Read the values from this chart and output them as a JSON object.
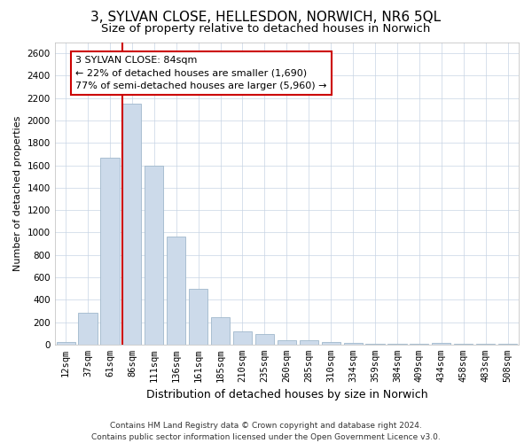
{
  "title": "3, SYLVAN CLOSE, HELLESDON, NORWICH, NR6 5QL",
  "subtitle": "Size of property relative to detached houses in Norwich",
  "xlabel": "Distribution of detached houses by size in Norwich",
  "ylabel": "Number of detached properties",
  "categories": [
    "12sqm",
    "37sqm",
    "61sqm",
    "86sqm",
    "111sqm",
    "136sqm",
    "161sqm",
    "185sqm",
    "210sqm",
    "235sqm",
    "260sqm",
    "285sqm",
    "310sqm",
    "334sqm",
    "359sqm",
    "384sqm",
    "409sqm",
    "434sqm",
    "458sqm",
    "483sqm",
    "508sqm"
  ],
  "values": [
    20,
    280,
    1670,
    2150,
    1600,
    960,
    500,
    245,
    115,
    90,
    40,
    35,
    22,
    15,
    10,
    8,
    5,
    18,
    5,
    5,
    5
  ],
  "bar_color": "#ccdaea",
  "bar_edge_color": "#a0b8cc",
  "vline_color": "#cc0000",
  "vline_x_index": 3,
  "ylim": [
    0,
    2700
  ],
  "yticks": [
    0,
    200,
    400,
    600,
    800,
    1000,
    1200,
    1400,
    1600,
    1800,
    2000,
    2200,
    2400,
    2600
  ],
  "annotation_text": "3 SYLVAN CLOSE: 84sqm\n← 22% of detached houses are smaller (1,690)\n77% of semi-detached houses are larger (5,960) →",
  "annotation_box_facecolor": "#ffffff",
  "annotation_box_edgecolor": "#cc0000",
  "footer_line1": "Contains HM Land Registry data © Crown copyright and database right 2024.",
  "footer_line2": "Contains public sector information licensed under the Open Government Licence v3.0.",
  "background_color": "#ffffff",
  "grid_color": "#c8d4e4",
  "title_fontsize": 11,
  "subtitle_fontsize": 9.5,
  "ylabel_fontsize": 8,
  "xlabel_fontsize": 9,
  "tick_fontsize": 7.5,
  "footer_fontsize": 6.5,
  "annotation_fontsize": 8
}
